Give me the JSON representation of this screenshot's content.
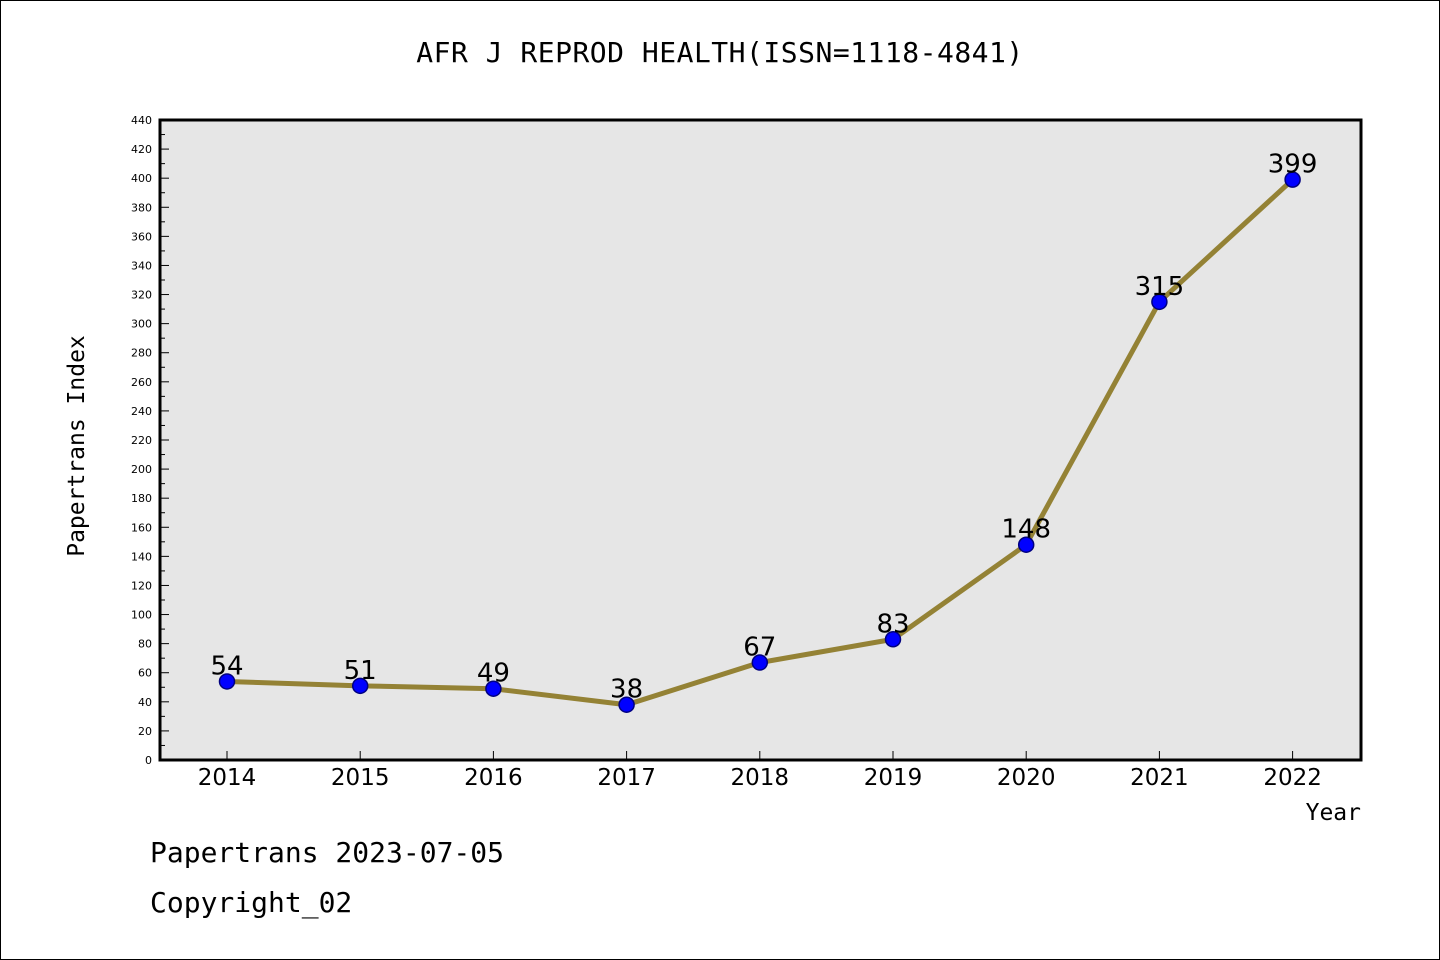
{
  "chart_data": {
    "type": "line",
    "title": "AFR J REPROD HEALTH(ISSN=1118-4841)",
    "xlabel": "Year",
    "ylabel": "Papertrans Index",
    "categories": [
      "2014",
      "2015",
      "2016",
      "2017",
      "2018",
      "2019",
      "2020",
      "2021",
      "2022"
    ],
    "series": [
      {
        "values": [
          54,
          51,
          49,
          38,
          67,
          83,
          148,
          315,
          399
        ]
      }
    ],
    "data_labels": [
      "54",
      "51",
      "49",
      "38",
      "67",
      "83",
      "148",
      "315",
      "399"
    ],
    "ylim": [
      0,
      440
    ],
    "y_ticks": [
      "0",
      "20",
      "40",
      "60",
      "80",
      "100",
      "120",
      "140",
      "160",
      "180",
      "200",
      "220",
      "240",
      "260",
      "280",
      "300",
      "320",
      "340",
      "360",
      "380",
      "400",
      "420",
      "440"
    ],
    "grid": false,
    "legend": "none",
    "colors": {
      "line": "#948235",
      "marker_fill": "#0000ff",
      "marker_stroke": "#000080",
      "plot_background": "#e6e6e6"
    }
  },
  "footer": {
    "date_line": "Papertrans 2023-07-05",
    "copyright_line": "Copyright_02"
  }
}
